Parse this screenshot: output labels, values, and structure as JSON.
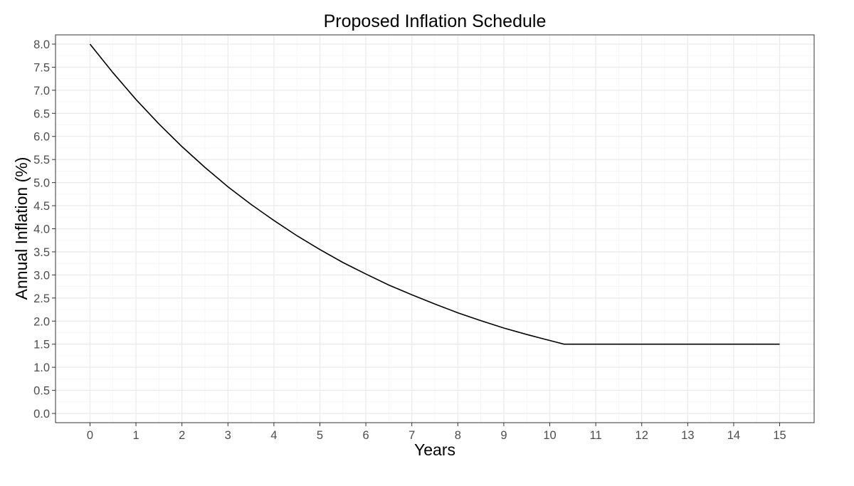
{
  "chart_data": {
    "type": "line",
    "title": "Proposed Inflation Schedule",
    "xlabel": "Years",
    "ylabel": "Annual Inflation (%)",
    "xlim": [
      -0.75,
      15.75
    ],
    "ylim": [
      -0.2,
      8.2
    ],
    "x_ticks": [
      0,
      1,
      2,
      3,
      4,
      5,
      6,
      7,
      8,
      9,
      10,
      11,
      12,
      13,
      14,
      15
    ],
    "x_tick_labels": [
      "0",
      "1",
      "2",
      "3",
      "4",
      "5",
      "6",
      "7",
      "8",
      "9",
      "10",
      "11",
      "12",
      "13",
      "14",
      "15"
    ],
    "y_ticks": [
      0,
      0.5,
      1,
      1.5,
      2,
      2.5,
      3,
      3.5,
      4,
      4.5,
      5,
      5.5,
      6,
      6.5,
      7,
      7.5,
      8
    ],
    "y_tick_labels": [
      "0.0",
      "0.5",
      "1.0",
      "1.5",
      "2.0",
      "2.5",
      "3.0",
      "3.5",
      "4.0",
      "4.5",
      "5.0",
      "5.5",
      "6.0",
      "6.5",
      "7.0",
      "7.5",
      "8.0"
    ],
    "grid": true,
    "legend": "none",
    "series": [
      {
        "color": "#000000",
        "x": [
          0,
          0.5,
          1,
          1.5,
          2,
          2.5,
          3,
          3.5,
          4,
          4.5,
          5,
          5.5,
          6,
          6.5,
          7,
          7.5,
          8,
          8.5,
          9,
          9.5,
          10,
          10.31,
          11,
          12,
          13,
          14,
          15
        ],
        "y": [
          8.0,
          7.38,
          6.8,
          6.27,
          5.78,
          5.33,
          4.91,
          4.53,
          4.18,
          3.85,
          3.55,
          3.27,
          3.02,
          2.78,
          2.57,
          2.37,
          2.18,
          2.01,
          1.85,
          1.71,
          1.58,
          1.5,
          1.5,
          1.5,
          1.5,
          1.5,
          1.5
        ]
      }
    ]
  }
}
